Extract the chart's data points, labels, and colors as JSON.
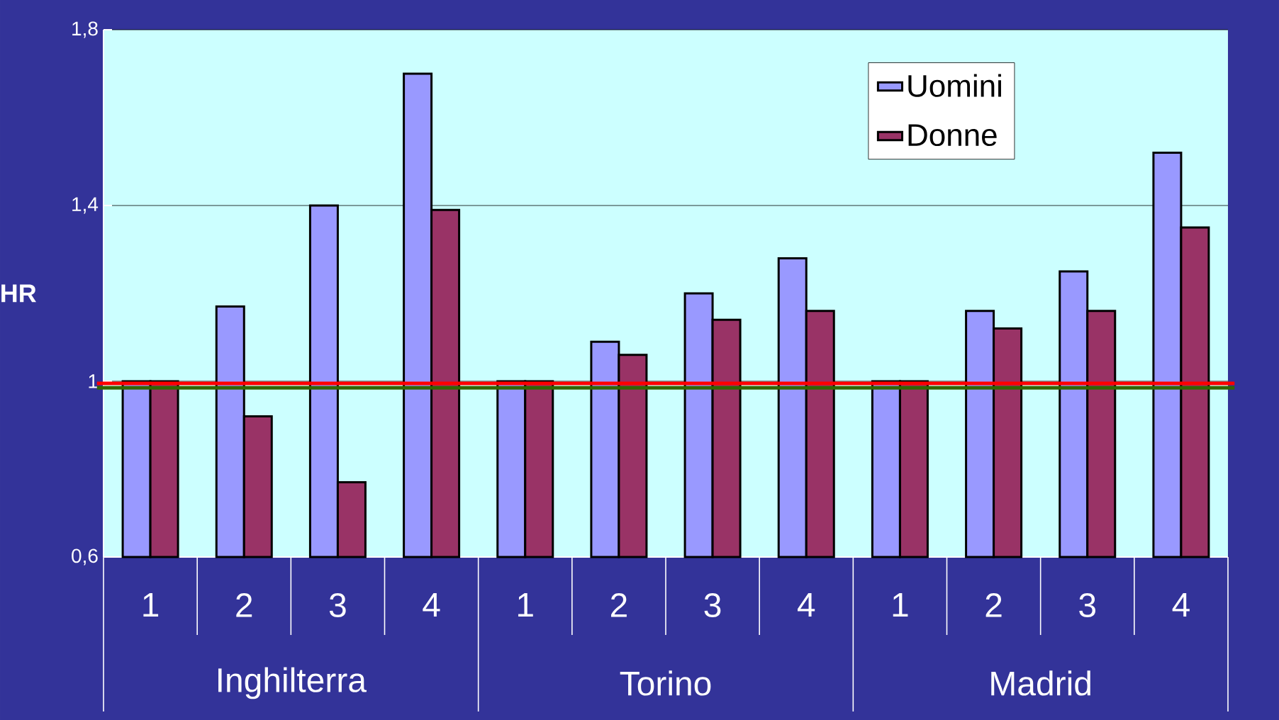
{
  "chart_data": {
    "type": "bar",
    "ylabel": "HR",
    "categories": [
      "1",
      "2",
      "3",
      "4",
      "1",
      "2",
      "3",
      "4",
      "1",
      "2",
      "3",
      "4"
    ],
    "series": [
      {
        "name": "Uomini",
        "color": "#9999ff",
        "values": [
          1.0,
          1.17,
          1.4,
          1.7,
          1.0,
          1.09,
          1.2,
          1.28,
          1.0,
          1.16,
          1.25,
          1.52
        ]
      },
      {
        "name": "Donne",
        "color": "#993366",
        "values": [
          1.0,
          0.92,
          0.77,
          1.39,
          1.0,
          1.06,
          1.14,
          1.16,
          1.0,
          1.12,
          1.16,
          1.35
        ]
      }
    ],
    "ylim": [
      0.6,
      1.8
    ],
    "yticks": [
      {
        "value": 0.6,
        "label": "0,6"
      },
      {
        "value": 1,
        "label": "1"
      },
      {
        "value": 1.4,
        "label": "1,4"
      },
      {
        "value": 1.8,
        "label": "1,8"
      }
    ],
    "grid": "y",
    "legend": "top right",
    "annotations": [
      "Inghilterra",
      "Torino",
      "Madrid"
    ],
    "ref_lines": [
      {
        "axis": "y",
        "value": 0.995,
        "color": "#ff0000"
      },
      {
        "axis": "y",
        "value": 0.985,
        "color": "#336600"
      }
    ]
  }
}
